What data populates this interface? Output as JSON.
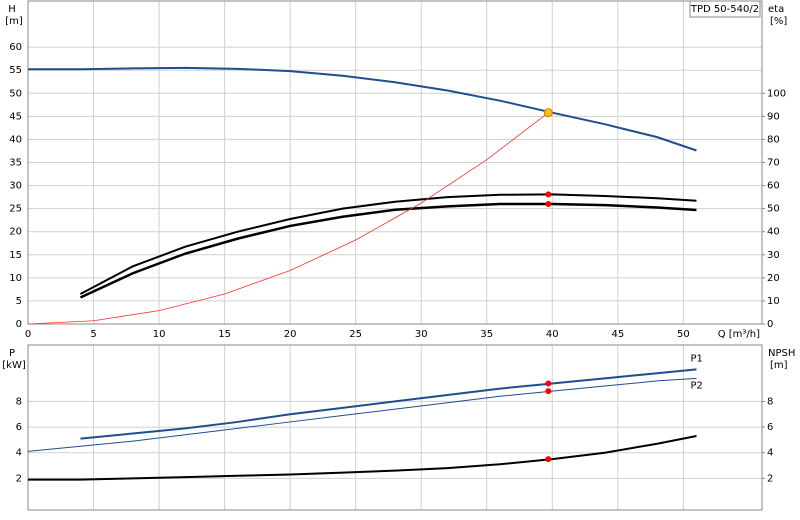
{
  "chart_data": [
    {
      "type": "line",
      "label_box": "TPD 50-540/2",
      "y_label": "H",
      "y_unit": "[m]",
      "y2_label": "eta",
      "y2_unit": "[%]",
      "x_label": "Q [m³/h]",
      "xlim": [
        0,
        56
      ],
      "xticks": [
        0,
        5,
        10,
        15,
        20,
        25,
        30,
        35,
        40,
        45,
        50
      ],
      "xtick_labels": true,
      "ylim": [
        0,
        70
      ],
      "yticks": [
        0,
        5,
        10,
        15,
        20,
        25,
        30,
        35,
        40,
        45,
        50,
        55,
        60
      ],
      "y2lim": [
        0,
        140
      ],
      "y2ticks": [
        0,
        10,
        20,
        30,
        40,
        50,
        60,
        70,
        80,
        90,
        100
      ],
      "grid": true,
      "series": [
        {
          "color": "#1f4e8c",
          "width": 2,
          "x": [
            0,
            4,
            8,
            12,
            16,
            20,
            24,
            28,
            32,
            36,
            40,
            44,
            48,
            51
          ],
          "values": [
            55.2,
            55.2,
            55.4,
            55.5,
            55.3,
            54.8,
            53.8,
            52.4,
            50.6,
            48.4,
            45.8,
            43.3,
            40.5,
            37.6
          ]
        },
        {
          "color": "#000000",
          "width": 2,
          "axis": "y2",
          "x": [
            4,
            8,
            12,
            16,
            20,
            24,
            28,
            32,
            36,
            40,
            44,
            48,
            51
          ],
          "values": [
            13,
            25,
            33.5,
            40,
            45.5,
            50,
            53,
            55,
            56,
            56.2,
            55.5,
            54.5,
            53.4
          ]
        },
        {
          "color": "#000000",
          "width": 2.5,
          "axis": "y2",
          "x": [
            4,
            8,
            12,
            16,
            20,
            24,
            28,
            32,
            36,
            40,
            44,
            48,
            51
          ],
          "values": [
            11.5,
            22,
            30.5,
            37,
            42.5,
            46.5,
            49.5,
            51,
            52,
            52,
            51.5,
            50.5,
            49.4
          ]
        },
        {
          "color": "#ff3030",
          "width": 0.8,
          "x": [
            0,
            5,
            10,
            15,
            20,
            25,
            30,
            35,
            39.7
          ],
          "values": [
            0,
            0.7,
            2.9,
            6.5,
            11.6,
            18.2,
            26.2,
            35.6,
            45.8
          ]
        }
      ],
      "markers": [
        {
          "x": 39.7,
          "y": 45.8,
          "color": "#ffc000"
        },
        {
          "x": 39.7,
          "y": 56.2,
          "color": "#ff0000",
          "axis": "y2"
        },
        {
          "x": 39.7,
          "y": 52,
          "color": "#ff0000",
          "axis": "y2"
        }
      ]
    },
    {
      "type": "line",
      "y_label": "P",
      "y_unit": "[kW]",
      "y2_label": "NPSH",
      "y2_unit": "[m]",
      "xlim": [
        0,
        56
      ],
      "xticks": [
        0,
        5,
        10,
        15,
        20,
        25,
        30,
        35,
        40,
        45,
        50
      ],
      "xtick_labels": false,
      "ylim": [
        0,
        12.4
      ],
      "yticks": [
        2,
        4,
        6,
        8
      ],
      "y2lim": [
        0,
        12.4
      ],
      "y2ticks": [
        2,
        4,
        6,
        8
      ],
      "grid": true,
      "series": [
        {
          "name": "P1",
          "color": "#1f4e8c",
          "width": 2,
          "x": [
            4,
            8,
            12,
            16,
            20,
            24,
            28,
            32,
            36,
            40,
            44,
            48,
            51
          ],
          "values": [
            5.1,
            5.5,
            5.9,
            6.4,
            7.0,
            7.5,
            8.0,
            8.5,
            9.0,
            9.4,
            9.8,
            10.2,
            10.5
          ]
        },
        {
          "name": "P2",
          "color": "#1f4e8c",
          "width": 1,
          "x": [
            0,
            4,
            8,
            12,
            16,
            20,
            24,
            28,
            32,
            36,
            40,
            44,
            48,
            51
          ],
          "values": [
            4.1,
            4.5,
            4.9,
            5.4,
            5.9,
            6.4,
            6.9,
            7.4,
            7.9,
            8.4,
            8.8,
            9.2,
            9.6,
            9.8
          ]
        },
        {
          "color": "#000000",
          "width": 2,
          "axis": "y2",
          "x": [
            0,
            4,
            8,
            12,
            16,
            20,
            24,
            28,
            32,
            36,
            40,
            44,
            48,
            51
          ],
          "values": [
            1.9,
            1.9,
            2.0,
            2.1,
            2.2,
            2.3,
            2.45,
            2.6,
            2.8,
            3.1,
            3.5,
            4.0,
            4.7,
            5.3
          ]
        }
      ],
      "markers": [
        {
          "x": 39.7,
          "y": 9.4,
          "color": "#ff0000"
        },
        {
          "x": 39.7,
          "y": 8.8,
          "color": "#ff0000"
        },
        {
          "x": 39.7,
          "y": 3.5,
          "color": "#ff0000",
          "axis": "y2"
        }
      ]
    }
  ]
}
